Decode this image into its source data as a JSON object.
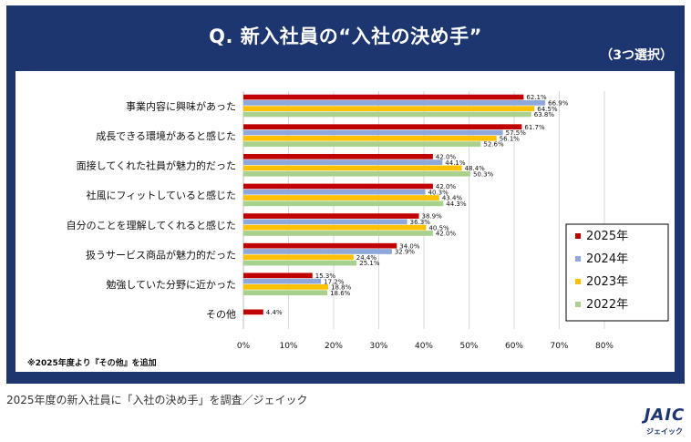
{
  "header": {
    "title": "Q. 新入社員の“入社の決め手”",
    "subtitle": "（3つ選択）"
  },
  "footnote": "※2025年度より『その他』を追加",
  "caption": "2025年度の新入社員に「入社の決め手」を調査／ジェイック",
  "logo": {
    "text": "JAIC",
    "sub": "ジェイック"
  },
  "chart_data": {
    "type": "bar",
    "orientation": "horizontal",
    "title": "Q. 新入社員の“入社の決め手”",
    "subtitle": "（3つ選択）",
    "categories": [
      "事業内容に興味があった",
      "成長できる環境があると感じた",
      "面接してくれた社員が魅力的だった",
      "社風にフィットしていると感じた",
      "自分のことを理解してくれると感じた",
      "扱うサービス商品が魅力的だった",
      "勉強していた分野に近かった",
      "その他"
    ],
    "series": [
      {
        "name": "2025年",
        "color": "#c00000",
        "values": [
          62.1,
          61.7,
          42.0,
          42.0,
          38.9,
          34.0,
          15.3,
          4.4
        ]
      },
      {
        "name": "2024年",
        "color": "#8fa8dc",
        "values": [
          66.9,
          57.5,
          44.1,
          40.3,
          36.3,
          32.9,
          17.2,
          null
        ]
      },
      {
        "name": "2023年",
        "color": "#ffc000",
        "values": [
          64.5,
          56.1,
          48.4,
          43.4,
          40.5,
          24.4,
          18.8,
          null
        ]
      },
      {
        "name": "2022年",
        "color": "#a9d18e",
        "values": [
          63.8,
          52.6,
          50.3,
          44.3,
          42.0,
          25.1,
          18.6,
          null
        ]
      }
    ],
    "value_labels": [
      [
        "62.1%",
        "66.9%",
        "64.5%",
        "63.8%"
      ],
      [
        "61.7%",
        "57.5%",
        "56.1%",
        "52.6%"
      ],
      [
        "42.0%",
        "44.1%",
        "48.4%",
        "50.3%"
      ],
      [
        "42.0%",
        "40.3%",
        "43.4%",
        "44.3%"
      ],
      [
        "38.9%",
        "36.3%",
        "40.5%",
        "42.0%"
      ],
      [
        "34.0%",
        "32.9%",
        "24.4%",
        "25.1%"
      ],
      [
        "15.3%",
        "17.2%",
        "18.8%",
        "18.6%"
      ],
      [
        "4.4%"
      ]
    ],
    "xlim": [
      0,
      80
    ],
    "xticks": [
      "0%",
      "10%",
      "20%",
      "30%",
      "40%",
      "50%",
      "60%",
      "70%",
      "80%"
    ],
    "grid": true,
    "legend": "right"
  }
}
